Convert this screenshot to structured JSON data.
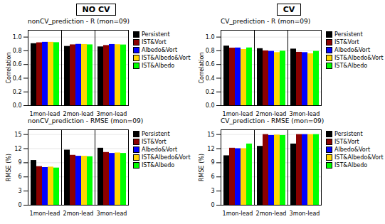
{
  "chart_data": [
    {
      "type": "bar",
      "title": "NO CV",
      "subtitle": "nonCV_prediction - R (mon=09)",
      "categories": [
        "1mon-lead",
        "2mon-lead",
        "3mon-lead"
      ],
      "series": [
        {
          "name": "Persistent",
          "color": "black",
          "values": [
            0.905,
            0.865,
            0.858
          ]
        },
        {
          "name": "IST&Vort",
          "color": "darkred",
          "values": [
            0.918,
            0.888,
            0.878
          ]
        },
        {
          "name": "Albedo&Vort",
          "color": "blue",
          "values": [
            0.925,
            0.895,
            0.893
          ]
        },
        {
          "name": "IST&Albedo&Vort",
          "color": "gold",
          "values": [
            0.925,
            0.893,
            0.89
          ]
        },
        {
          "name": "IST&Albedo",
          "color": "lime",
          "values": [
            0.92,
            0.888,
            0.886
          ]
        }
      ],
      "ylabel": "Correlation",
      "ylim": [
        0.0,
        1.1
      ],
      "yticks": [
        {
          "value": 0.0,
          "label": "0.0"
        },
        0.2,
        0.4,
        0.6,
        0.8,
        {
          "value": 1.0,
          "label": "1.0"
        }
      ],
      "grid": true,
      "legend": "right"
    },
    {
      "type": "bar",
      "title": "CV",
      "subtitle": "CV_prediction - R (mon=09)",
      "categories": [
        "1mon-lead",
        "2mon-lead",
        "3mon-lead"
      ],
      "series": [
        {
          "name": "Persistent",
          "color": "black",
          "values": [
            0.87,
            0.832,
            0.826
          ]
        },
        {
          "name": "IST&Vort",
          "color": "darkred",
          "values": [
            0.84,
            0.8,
            0.779
          ]
        },
        {
          "name": "Albedo&Vort",
          "color": "blue",
          "values": [
            0.842,
            0.793,
            0.775
          ]
        },
        {
          "name": "IST&Albedo&Vort",
          "color": "gold",
          "values": [
            0.82,
            0.775,
            0.757
          ]
        },
        {
          "name": "IST&Albedo",
          "color": "lime",
          "values": [
            0.843,
            0.796,
            0.793
          ]
        }
      ],
      "ylabel": "Correlation",
      "ylim": [
        0.0,
        1.1
      ],
      "yticks": [
        {
          "value": 0.0,
          "label": "0.0"
        },
        0.2,
        0.4,
        0.6,
        0.8,
        {
          "value": 1.0,
          "label": "1.0"
        }
      ],
      "grid": true,
      "legend": "right"
    },
    {
      "type": "bar",
      "subtitle": "nonCV_prediction - RMSE (mon=09)",
      "categories": [
        "1mon-lead",
        "2mon-lead",
        "3mon-lead"
      ],
      "series": [
        {
          "name": "Persistent",
          "color": "black",
          "values": [
            9.5,
            11.7,
            12.1
          ]
        },
        {
          "name": "IST&Vort",
          "color": "darkred",
          "values": [
            8.2,
            10.6,
            11.2
          ]
        },
        {
          "name": "Albedo&Vort",
          "color": "blue",
          "values": [
            8.0,
            10.4,
            11.0
          ]
        },
        {
          "name": "IST&Albedo&Vort",
          "color": "gold",
          "values": [
            8.1,
            10.4,
            11.1
          ]
        },
        {
          "name": "IST&Albedo",
          "color": "lime",
          "values": [
            7.9,
            10.3,
            11.0
          ]
        }
      ],
      "ylabel": "RMSE (%)",
      "ylim": [
        0,
        16
      ],
      "yticks": [
        0,
        3,
        6,
        9,
        12,
        15
      ],
      "grid": true,
      "legend": "right"
    },
    {
      "type": "bar",
      "subtitle": "CV_prediction - RMSE (mon=09)",
      "categories": [
        "1mon-lead",
        "2mon-lead",
        "3mon-lead"
      ],
      "series": [
        {
          "name": "Persistent",
          "color": "black",
          "values": [
            10.5,
            12.5,
            13.0
          ]
        },
        {
          "name": "IST&Vort",
          "color": "darkred",
          "values": [
            12.1,
            15.0,
            15.0
          ]
        },
        {
          "name": "Albedo&Vort",
          "color": "blue",
          "values": [
            12.0,
            14.8,
            15.0
          ]
        },
        {
          "name": "IST&Albedo&Vort",
          "color": "gold",
          "values": [
            12.0,
            14.9,
            15.0
          ]
        },
        {
          "name": "IST&Albedo",
          "color": "lime",
          "values": [
            13.0,
            14.8,
            15.0
          ]
        }
      ],
      "ylabel": "RMSE (%)",
      "ylim": [
        0,
        16
      ],
      "yticks": [
        0,
        3,
        6,
        9,
        12,
        15
      ],
      "grid": true,
      "legend": "right"
    }
  ]
}
